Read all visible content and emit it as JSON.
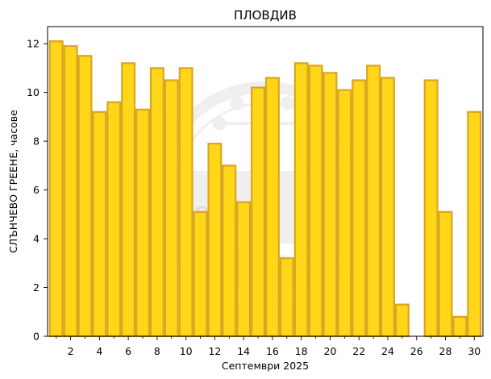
{
  "chart_data": {
    "type": "bar",
    "title": "ПЛОВДИВ",
    "xlabel": "Септември  2025",
    "ylabel": "СЛЪНЧЕВО ГРЕЕНЕ,  часове",
    "categories": [
      1,
      2,
      3,
      4,
      5,
      6,
      7,
      8,
      9,
      10,
      11,
      12,
      13,
      14,
      15,
      16,
      17,
      18,
      19,
      20,
      21,
      22,
      23,
      24,
      25,
      26,
      27,
      28,
      29,
      30
    ],
    "values": [
      12.1,
      11.9,
      11.5,
      9.2,
      9.6,
      11.2,
      9.3,
      11.0,
      10.5,
      11.0,
      5.1,
      7.9,
      7.0,
      5.5,
      10.2,
      10.6,
      3.2,
      11.2,
      11.1,
      10.8,
      10.1,
      10.5,
      11.1,
      10.6,
      1.3,
      0.0,
      10.5,
      5.1,
      0.8,
      9.2
    ],
    "xticks": [
      2,
      4,
      6,
      8,
      10,
      12,
      14,
      16,
      18,
      20,
      22,
      24,
      26,
      28,
      30
    ],
    "yticks": [
      0,
      2,
      4,
      6,
      8,
      10,
      12
    ],
    "xlim": [
      0.4,
      30.6
    ],
    "ylim": [
      0,
      12.7
    ],
    "grid": false,
    "colors": {
      "bar_fill": "#FFD718",
      "bar_edge": "#DAA520"
    },
    "watermark": {
      "text": "1890",
      "letter": "N"
    }
  }
}
